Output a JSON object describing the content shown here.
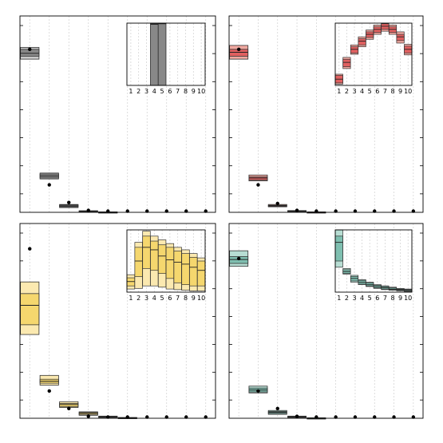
{
  "chart_data": [
    {
      "type": "box",
      "panel": "top-left",
      "color": "#888888",
      "light": "#c8c8c8",
      "x": [
        1,
        2,
        3,
        4,
        5,
        6,
        7,
        8,
        9,
        10
      ],
      "ylim": [
        0,
        1
      ],
      "boxes": [
        {
          "x": 1,
          "lo": 0.78,
          "q1": 0.795,
          "med": 0.81,
          "q3": 0.83,
          "hi": 0.84,
          "point": 0.83
        },
        {
          "x": 2,
          "lo": 0.17,
          "q1": 0.175,
          "med": 0.185,
          "q3": 0.195,
          "hi": 0.2,
          "point": 0.14
        },
        {
          "x": 3,
          "lo": 0.024,
          "q1": 0.028,
          "med": 0.032,
          "q3": 0.037,
          "hi": 0.04,
          "point": 0.05
        },
        {
          "x": 4,
          "lo": 0.004,
          "q1": 0.005,
          "med": 0.006,
          "q3": 0.007,
          "hi": 0.008,
          "point": 0.01
        },
        {
          "x": 5,
          "lo": 0.001,
          "q1": 0.0012,
          "med": 0.0015,
          "q3": 0.0018,
          "hi": 0.002,
          "point": 0.002
        },
        {
          "x": 6,
          "point": 0.001
        },
        {
          "x": 7,
          "point": 0.001
        },
        {
          "x": 8,
          "point": 0.0005
        },
        {
          "x": 9,
          "point": 0.0005
        },
        {
          "x": 10,
          "point": 0.0005
        }
      ],
      "inset": {
        "x": [
          1,
          2,
          3,
          4,
          5,
          6,
          7,
          8,
          9,
          10
        ],
        "ylim": [
          0,
          1
        ],
        "xticklabels": [
          "1",
          "2",
          "3",
          "4",
          "5",
          "6",
          "7",
          "8",
          "9",
          "10"
        ],
        "boxes": [
          {
            "x": 4,
            "lo": 0,
            "q1": 0,
            "med": 0.98,
            "q3": 0.99,
            "hi": 1.0
          },
          {
            "x": 5,
            "lo": 0,
            "q1": 0,
            "med": 0.99,
            "q3": 1.0,
            "hi": 1.0
          }
        ]
      }
    },
    {
      "type": "box",
      "panel": "top-right",
      "color": "#e06060",
      "light": "#f0a8a0",
      "x": [
        1,
        2,
        3,
        4,
        5,
        6,
        7,
        8,
        9,
        10
      ],
      "ylim": [
        0,
        1
      ],
      "boxes": [
        {
          "x": 1,
          "lo": 0.78,
          "q1": 0.795,
          "med": 0.815,
          "q3": 0.83,
          "hi": 0.85,
          "point": 0.83
        },
        {
          "x": 2,
          "lo": 0.16,
          "q1": 0.165,
          "med": 0.175,
          "q3": 0.18,
          "hi": 0.19,
          "point": 0.14
        },
        {
          "x": 3,
          "lo": 0.028,
          "q1": 0.03,
          "med": 0.033,
          "q3": 0.036,
          "hi": 0.04,
          "point": 0.045
        },
        {
          "x": 4,
          "lo": 0.004,
          "q1": 0.005,
          "med": 0.006,
          "q3": 0.008,
          "hi": 0.009,
          "point": 0.01
        },
        {
          "x": 5,
          "lo": 0.001,
          "q1": 0.0012,
          "med": 0.0015,
          "q3": 0.0018,
          "hi": 0.002,
          "point": 0.002
        },
        {
          "x": 6,
          "point": 0.001
        },
        {
          "x": 7,
          "point": 0.001
        },
        {
          "x": 8,
          "point": 0.0005
        },
        {
          "x": 9,
          "point": 0.0005
        },
        {
          "x": 10,
          "point": 0.0005
        }
      ],
      "inset": {
        "x": [
          1,
          2,
          3,
          4,
          5,
          6,
          7,
          8,
          9,
          10
        ],
        "ylim": [
          0,
          1
        ],
        "xticklabels": [
          "1",
          "2",
          "3",
          "4",
          "5",
          "6",
          "7",
          "8",
          "9",
          "10"
        ],
        "boxes": [
          {
            "x": 1,
            "lo": 0.02,
            "q1": 0.04,
            "med": 0.1,
            "q3": 0.16,
            "hi": 0.18
          },
          {
            "x": 2,
            "lo": 0.27,
            "q1": 0.3,
            "med": 0.37,
            "q3": 0.42,
            "hi": 0.45
          },
          {
            "x": 3,
            "lo": 0.5,
            "q1": 0.52,
            "med": 0.58,
            "q3": 0.62,
            "hi": 0.65
          },
          {
            "x": 4,
            "lo": 0.62,
            "q1": 0.65,
            "med": 0.71,
            "q3": 0.75,
            "hi": 0.78
          },
          {
            "x": 5,
            "lo": 0.74,
            "q1": 0.77,
            "med": 0.82,
            "q3": 0.86,
            "hi": 0.89
          },
          {
            "x": 6,
            "lo": 0.82,
            "q1": 0.85,
            "med": 0.9,
            "q3": 0.94,
            "hi": 0.97
          },
          {
            "x": 7,
            "lo": 0.87,
            "q1": 0.9,
            "med": 0.95,
            "q3": 0.99,
            "hi": 1.0
          },
          {
            "x": 8,
            "lo": 0.82,
            "q1": 0.85,
            "med": 0.9,
            "q3": 0.94,
            "hi": 0.97
          },
          {
            "x": 9,
            "lo": 0.68,
            "q1": 0.72,
            "med": 0.78,
            "q3": 0.82,
            "hi": 0.86
          },
          {
            "x": 10,
            "lo": 0.49,
            "q1": 0.52,
            "med": 0.58,
            "q3": 0.63,
            "hi": 0.66
          }
        ]
      }
    },
    {
      "type": "box",
      "panel": "bottom-left",
      "color": "#f5d76e",
      "light": "#fbe9b0",
      "x": [
        1,
        2,
        3,
        4,
        5,
        6,
        7,
        8,
        9,
        10
      ],
      "ylim": [
        0,
        1
      ],
      "boxes": [
        {
          "x": 1,
          "lo": 0.43,
          "q1": 0.48,
          "med": 0.58,
          "q3": 0.64,
          "hi": 0.7,
          "point": 0.87
        },
        {
          "x": 2,
          "lo": 0.17,
          "q1": 0.18,
          "med": 0.19,
          "q3": 0.2,
          "hi": 0.22,
          "point": 0.14
        },
        {
          "x": 3,
          "lo": 0.055,
          "q1": 0.06,
          "med": 0.07,
          "q3": 0.076,
          "hi": 0.085,
          "point": 0.05
        },
        {
          "x": 4,
          "lo": 0.015,
          "q1": 0.02,
          "med": 0.025,
          "q3": 0.03,
          "hi": 0.033,
          "point": 0.01
        },
        {
          "x": 5,
          "lo": 0.004,
          "q1": 0.005,
          "med": 0.007,
          "q3": 0.009,
          "hi": 0.011,
          "point": 0.002
        },
        {
          "x": 6,
          "lo": 0.001,
          "q1": 0.0015,
          "med": 0.002,
          "q3": 0.003,
          "hi": 0.004,
          "point": 0.001
        },
        {
          "x": 7,
          "point": 0.001
        },
        {
          "x": 8,
          "point": 0.0005
        },
        {
          "x": 9,
          "point": 0.0005
        },
        {
          "x": 10,
          "point": 0.0005
        }
      ],
      "inset": {
        "x": [
          1,
          2,
          3,
          4,
          5,
          6,
          7,
          8,
          9,
          10
        ],
        "ylim": [
          0,
          1
        ],
        "xticklabels": [
          "1",
          "2",
          "3",
          "4",
          "5",
          "6",
          "7",
          "8",
          "9",
          "10"
        ],
        "boxes": [
          {
            "x": 1,
            "lo": 0.05,
            "q1": 0.1,
            "med": 0.17,
            "q3": 0.23,
            "hi": 0.28
          },
          {
            "x": 2,
            "lo": 0.06,
            "q1": 0.25,
            "med": 0.5,
            "q3": 0.72,
            "hi": 0.8
          },
          {
            "x": 3,
            "lo": 0.1,
            "q1": 0.38,
            "med": 0.72,
            "q3": 0.9,
            "hi": 0.98
          },
          {
            "x": 4,
            "lo": 0.1,
            "q1": 0.35,
            "med": 0.68,
            "q3": 0.82,
            "hi": 0.9
          },
          {
            "x": 5,
            "lo": 0.08,
            "q1": 0.3,
            "med": 0.58,
            "q3": 0.76,
            "hi": 0.84
          },
          {
            "x": 6,
            "lo": 0.05,
            "q1": 0.22,
            "med": 0.52,
            "q3": 0.72,
            "hi": 0.78
          },
          {
            "x": 7,
            "lo": 0.04,
            "q1": 0.15,
            "med": 0.48,
            "q3": 0.66,
            "hi": 0.72
          },
          {
            "x": 8,
            "lo": 0.03,
            "q1": 0.12,
            "med": 0.45,
            "q3": 0.62,
            "hi": 0.68
          },
          {
            "x": 9,
            "lo": 0.02,
            "q1": 0.1,
            "med": 0.4,
            "q3": 0.56,
            "hi": 0.62
          },
          {
            "x": 10,
            "lo": 0.02,
            "q1": 0.1,
            "med": 0.35,
            "q3": 0.5,
            "hi": 0.55
          }
        ]
      }
    },
    {
      "type": "box",
      "panel": "bottom-right",
      "color": "#7fbfb0",
      "light": "#b7ddd3",
      "x": [
        1,
        2,
        3,
        4,
        5,
        6,
        7,
        8,
        9,
        10
      ],
      "ylim": [
        0,
        1
      ],
      "boxes": [
        {
          "x": 1,
          "lo": 0.78,
          "q1": 0.795,
          "med": 0.815,
          "q3": 0.83,
          "hi": 0.86,
          "point": 0.82
        },
        {
          "x": 2,
          "lo": 0.13,
          "q1": 0.135,
          "med": 0.145,
          "q3": 0.155,
          "hi": 0.165,
          "point": 0.14
        },
        {
          "x": 3,
          "lo": 0.02,
          "q1": 0.025,
          "med": 0.03,
          "q3": 0.035,
          "hi": 0.04,
          "point": 0.05
        },
        {
          "x": 4,
          "lo": 0.004,
          "q1": 0.005,
          "med": 0.007,
          "q3": 0.009,
          "hi": 0.011,
          "point": 0.01
        },
        {
          "x": 5,
          "lo": 0.001,
          "q1": 0.0012,
          "med": 0.0015,
          "q3": 0.0018,
          "hi": 0.002,
          "point": 0.002
        },
        {
          "x": 6,
          "point": 0.001
        },
        {
          "x": 7,
          "point": 0.001
        },
        {
          "x": 8,
          "point": 0.0005
        },
        {
          "x": 9,
          "point": 0.0005
        },
        {
          "x": 10,
          "point": 0.0005
        }
      ],
      "inset": {
        "x": [
          1,
          2,
          3,
          4,
          5,
          6,
          7,
          8,
          9,
          10
        ],
        "ylim": [
          0,
          1
        ],
        "xticklabels": [
          "1",
          "2",
          "3",
          "4",
          "5",
          "6",
          "7",
          "8",
          "9",
          "10"
        ],
        "boxes": [
          {
            "x": 1,
            "lo": 0.4,
            "q1": 0.5,
            "med": 0.8,
            "q3": 0.9,
            "hi": 1.0
          },
          {
            "x": 2,
            "lo": 0.29,
            "q1": 0.3,
            "med": 0.33,
            "q3": 0.36,
            "hi": 0.38
          },
          {
            "x": 3,
            "lo": 0.16,
            "q1": 0.18,
            "med": 0.22,
            "q3": 0.25,
            "hi": 0.27
          },
          {
            "x": 4,
            "lo": 0.12,
            "q1": 0.13,
            "med": 0.16,
            "q3": 0.19,
            "hi": 0.2
          },
          {
            "x": 5,
            "lo": 0.09,
            "q1": 0.1,
            "med": 0.12,
            "q3": 0.15,
            "hi": 0.16
          },
          {
            "x": 6,
            "lo": 0.06,
            "q1": 0.07,
            "med": 0.09,
            "q3": 0.11,
            "hi": 0.12
          },
          {
            "x": 7,
            "lo": 0.04,
            "q1": 0.05,
            "med": 0.07,
            "q3": 0.09,
            "hi": 0.1
          },
          {
            "x": 8,
            "lo": 0.03,
            "q1": 0.04,
            "med": 0.05,
            "q3": 0.07,
            "hi": 0.08
          },
          {
            "x": 9,
            "lo": 0.02,
            "q1": 0.03,
            "med": 0.04,
            "q3": 0.05,
            "hi": 0.06
          },
          {
            "x": 10,
            "lo": 0.01,
            "q1": 0.02,
            "med": 0.03,
            "q3": 0.04,
            "hi": 0.05
          }
        ]
      }
    }
  ]
}
